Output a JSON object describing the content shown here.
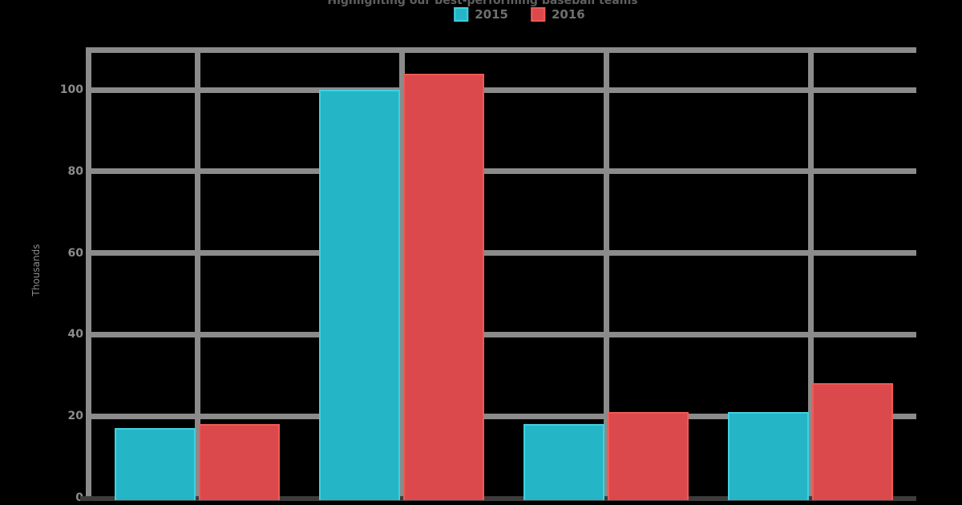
{
  "chart_data": {
    "type": "bar",
    "title": "Highlighting our best-performing baseball teams",
    "ylabel": "Thousands",
    "xlabel": "",
    "categories": [
      "",
      "",
      "",
      ""
    ],
    "series": [
      {
        "name": "2015",
        "color": "#24b5c7",
        "border_color": "#3fd1e0",
        "values": [
          17,
          100,
          18,
          21
        ]
      },
      {
        "name": "2016",
        "color": "#db494c",
        "border_color": "#f05a55",
        "values": [
          18,
          104,
          21,
          28
        ]
      }
    ],
    "ylim": [
      0,
      110
    ],
    "yticks": [
      0,
      20,
      40,
      60,
      80,
      100
    ],
    "grid": true,
    "legend_position": "top"
  },
  "colors": {
    "background": "#000000",
    "gridline": "#8b8b8b",
    "axis_line": "#3d3d3d",
    "tick_label": "#8c8c8c",
    "title_text": "#5f5f5f",
    "legend_text": "#6f6f6f"
  }
}
